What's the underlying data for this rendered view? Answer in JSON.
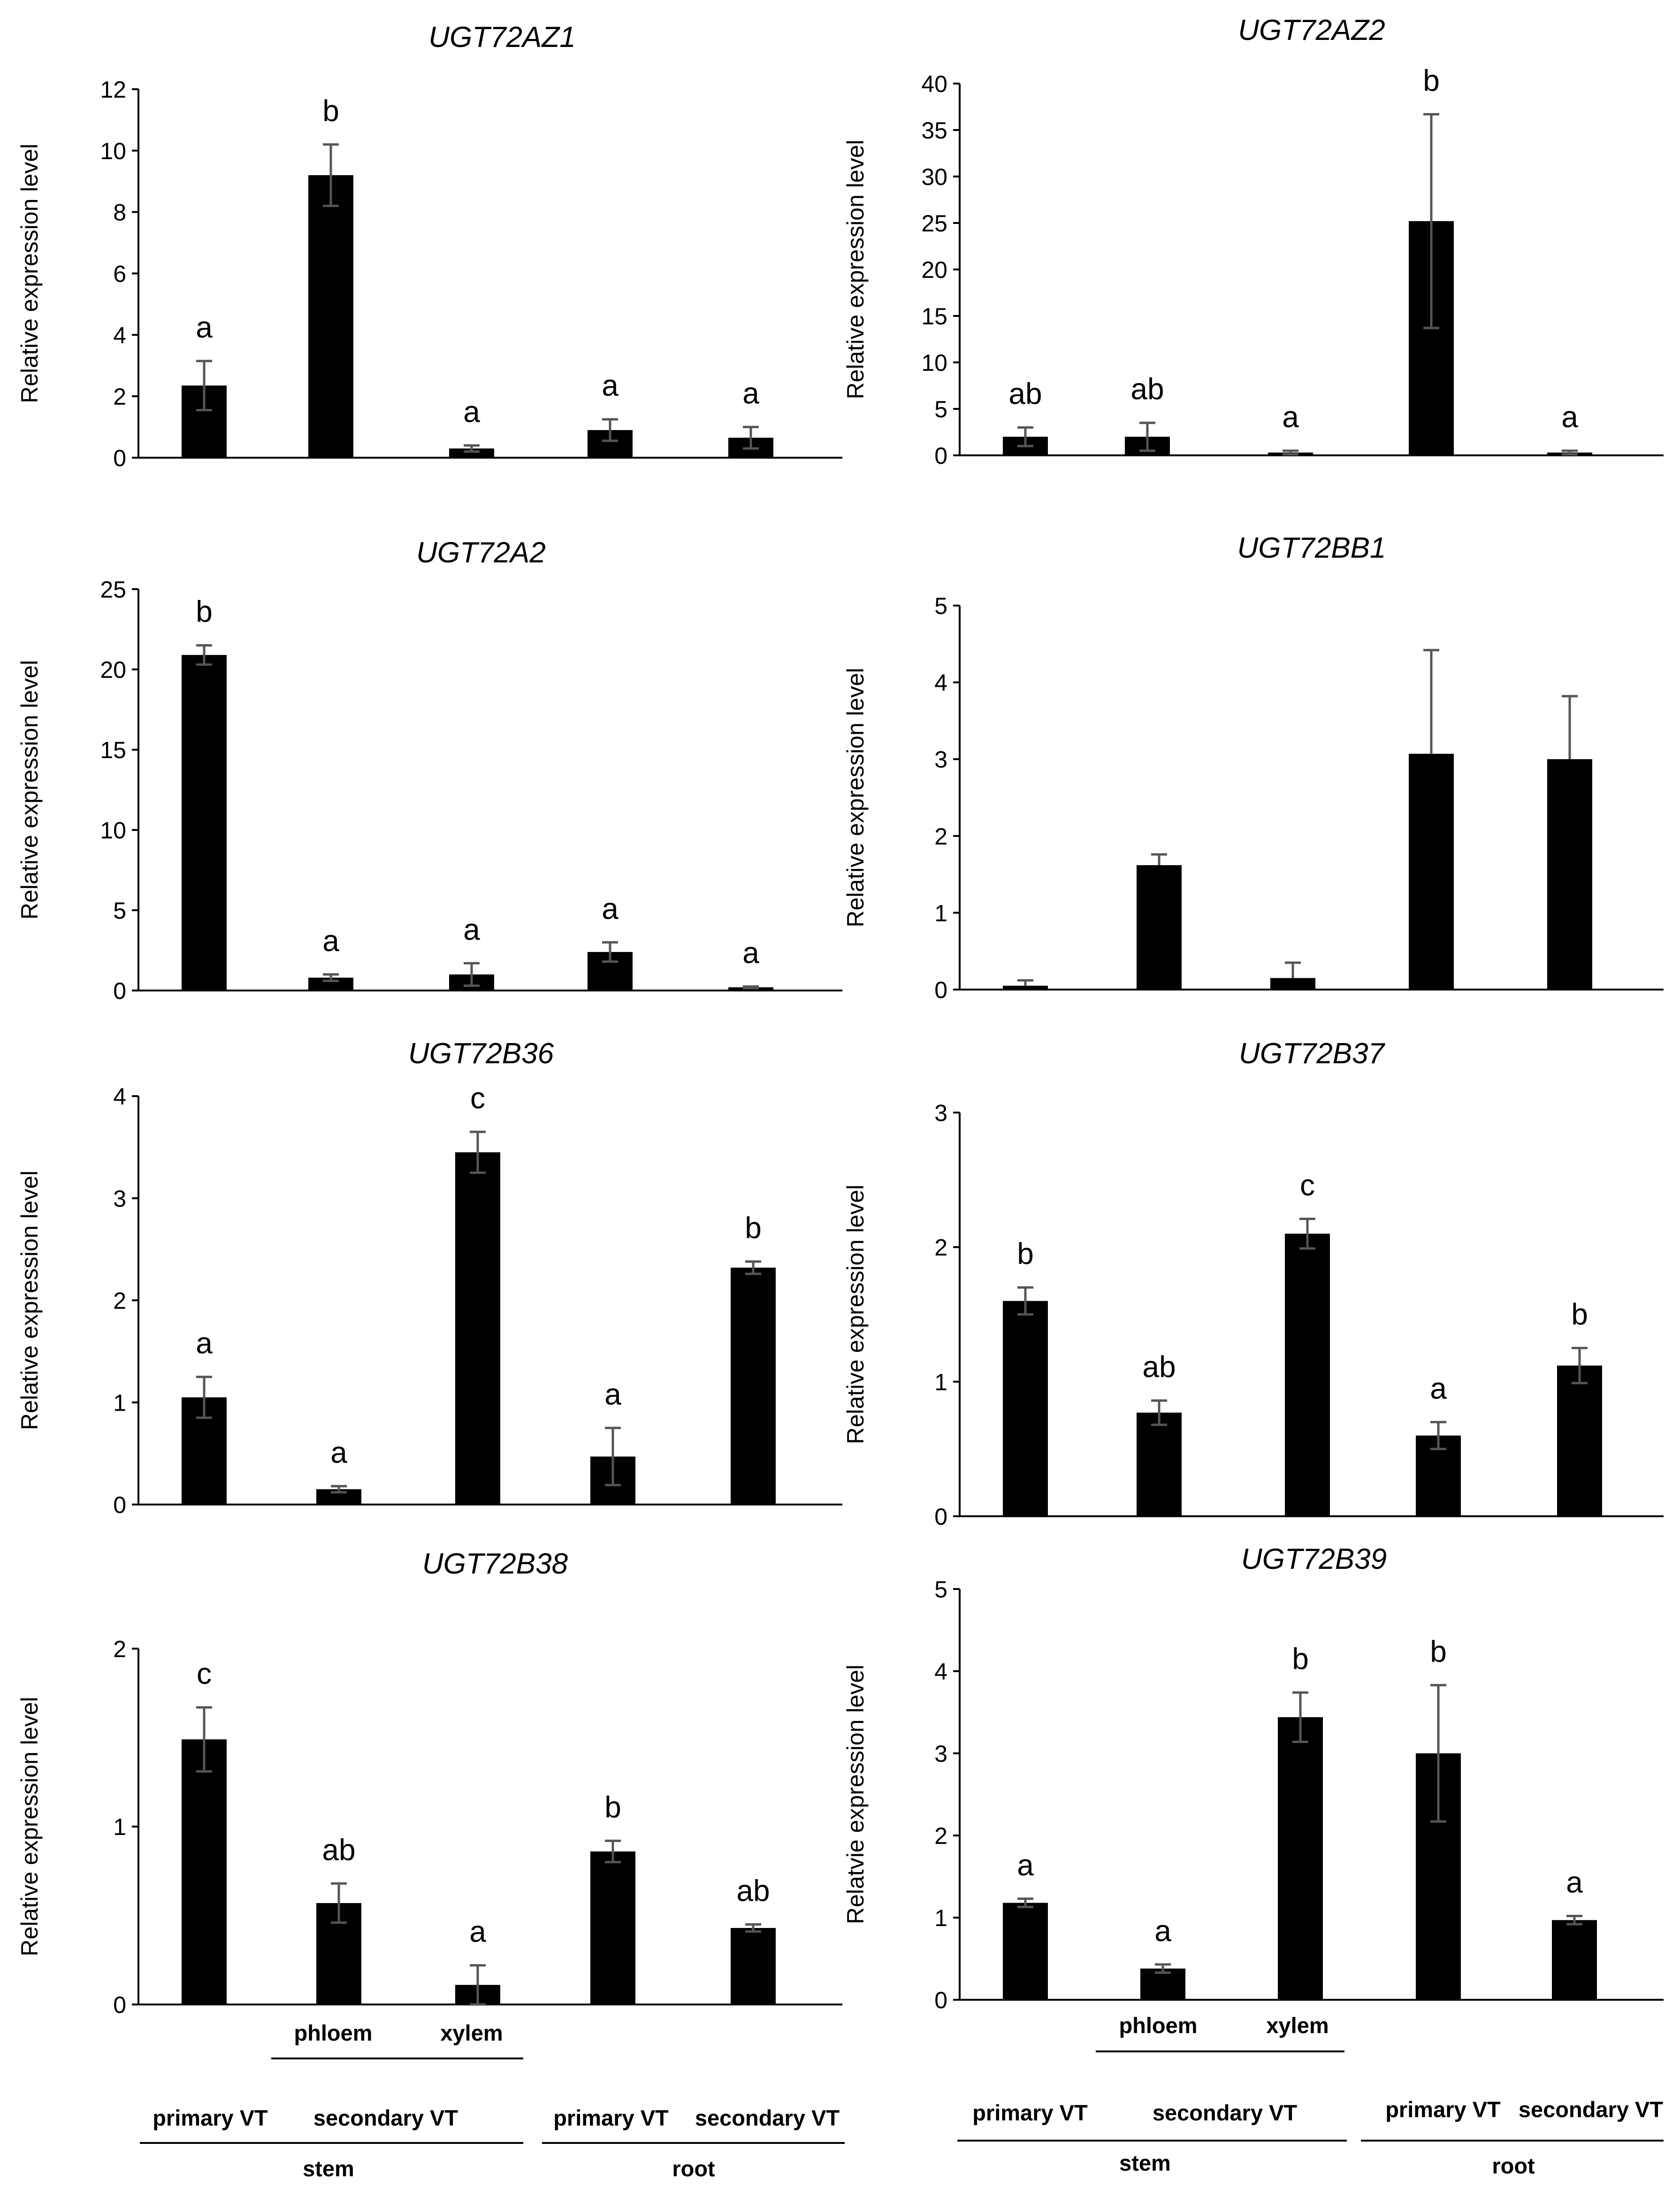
{
  "colors": {
    "bar": "#000000",
    "error_bar": "#555555",
    "axis": "#000000",
    "text": "#000000"
  },
  "chart_data": [
    {
      "type": "bar",
      "title": "UGT72AZ1",
      "ylabel": "Relative expression level",
      "ylim": [
        0,
        12
      ],
      "yticks": [
        0,
        2,
        4,
        6,
        8,
        10,
        12
      ],
      "values": [
        2.35,
        9.2,
        0.3,
        0.9,
        0.65
      ],
      "errors": [
        0.8,
        1.0,
        0.1,
        0.35,
        0.35
      ],
      "letters": [
        "a",
        "b",
        "a",
        "a",
        "a"
      ]
    },
    {
      "type": "bar",
      "title": "UGT72AZ2",
      "ylabel": "Relative expression level",
      "ylim": [
        0,
        40
      ],
      "yticks": [
        0,
        5,
        10,
        15,
        20,
        25,
        30,
        35,
        40
      ],
      "values": [
        2.0,
        2.0,
        0.3,
        25.2,
        0.3
      ],
      "errors": [
        1.0,
        1.5,
        0.2,
        11.5,
        0.2
      ],
      "letters": [
        "ab",
        "ab",
        "a",
        "b",
        "a"
      ]
    },
    {
      "type": "bar",
      "title": "UGT72A2",
      "ylabel": "Relative expression level",
      "ylim": [
        0,
        25
      ],
      "yticks": [
        0,
        5,
        10,
        15,
        20,
        25
      ],
      "values": [
        20.9,
        0.8,
        1.0,
        2.4,
        0.2
      ],
      "errors": [
        0.6,
        0.2,
        0.7,
        0.6,
        0.05
      ],
      "letters": [
        "b",
        "a",
        "a",
        "a",
        "a"
      ]
    },
    {
      "type": "bar",
      "title": "UGT72BB1",
      "ylabel": "Relative expression level",
      "ylim": [
        0,
        5
      ],
      "yticks": [
        0,
        1,
        2,
        3,
        4,
        5
      ],
      "values": [
        0.05,
        1.62,
        0.15,
        3.07,
        3.0
      ],
      "errors": [
        0.07,
        0.14,
        0.2,
        1.35,
        0.82
      ],
      "error_style": "up",
      "letters": [
        "",
        "",
        "",
        "",
        ""
      ]
    },
    {
      "type": "bar",
      "title": "UGT72B36",
      "ylabel": "Relative expression level",
      "ylim": [
        0,
        4
      ],
      "yticks": [
        0,
        1,
        2,
        3,
        4
      ],
      "values": [
        1.05,
        0.15,
        3.45,
        0.47,
        2.32
      ],
      "errors": [
        0.2,
        0.03,
        0.2,
        0.28,
        0.06
      ],
      "letters": [
        "a",
        "a",
        "c",
        "a",
        "b"
      ]
    },
    {
      "type": "bar",
      "title": "UGT72B37",
      "ylabel": "Relative expression level",
      "ylim": [
        0,
        3
      ],
      "yticks": [
        0,
        1,
        2,
        3
      ],
      "values": [
        1.6,
        0.77,
        2.1,
        0.6,
        1.12
      ],
      "errors": [
        0.1,
        0.09,
        0.11,
        0.1,
        0.13
      ],
      "letters": [
        "b",
        "ab",
        "c",
        "a",
        "b"
      ]
    },
    {
      "type": "bar",
      "title": "UGT72B38",
      "ylabel": "Relative expression level",
      "ylim": [
        0,
        2
      ],
      "yticks": [
        0,
        1,
        2
      ],
      "values": [
        1.49,
        0.57,
        0.11,
        0.86,
        0.43
      ],
      "errors": [
        0.18,
        0.11,
        0.11,
        0.06,
        0.02
      ],
      "letters": [
        "c",
        "ab",
        "a",
        "b",
        "ab"
      ]
    },
    {
      "type": "bar",
      "title": "UGT72B39",
      "ylabel": "Relatvie expression level",
      "ylim": [
        0,
        5
      ],
      "yticks": [
        0,
        1,
        2,
        3,
        4,
        5
      ],
      "values": [
        1.18,
        0.38,
        3.44,
        3.0,
        0.97
      ],
      "errors": [
        0.05,
        0.05,
        0.3,
        0.83,
        0.05
      ],
      "letters": [
        "a",
        "a",
        "b",
        "b",
        "a"
      ]
    }
  ],
  "x_labels": {
    "secondary_sub": [
      "phloem",
      "xylem"
    ],
    "tissues": [
      "primary VT",
      "secondary VT",
      "primary VT",
      "secondary VT"
    ],
    "organs": [
      "stem",
      "root"
    ]
  }
}
